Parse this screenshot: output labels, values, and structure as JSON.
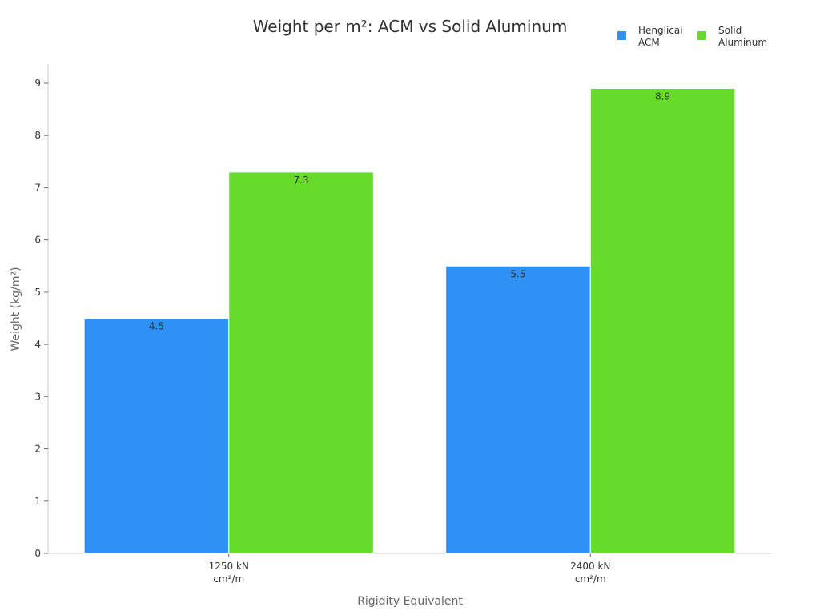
{
  "chart_data": {
    "type": "bar",
    "title": "Weight per m²: ACM vs Solid Aluminum",
    "xlabel": "Rigidity Equivalent",
    "ylabel": "Weight (kg/m²)",
    "categories": [
      [
        "1250 kN",
        "cm²/m"
      ],
      [
        "2400 kN",
        "cm²/m"
      ]
    ],
    "series": [
      {
        "name": [
          "Henglicai",
          "ACM"
        ],
        "values": [
          4.5,
          5.5
        ],
        "color": "#3091F5"
      },
      {
        "name": [
          "Solid",
          "Aluminum"
        ],
        "values": [
          7.3,
          8.9
        ],
        "color": "#67DB29"
      }
    ],
    "ylim": [
      0,
      9.0
    ],
    "yticks": [
      0,
      1,
      2,
      3,
      4,
      5,
      6,
      7,
      8,
      9
    ],
    "grid": false,
    "legend_position": "top-right"
  }
}
